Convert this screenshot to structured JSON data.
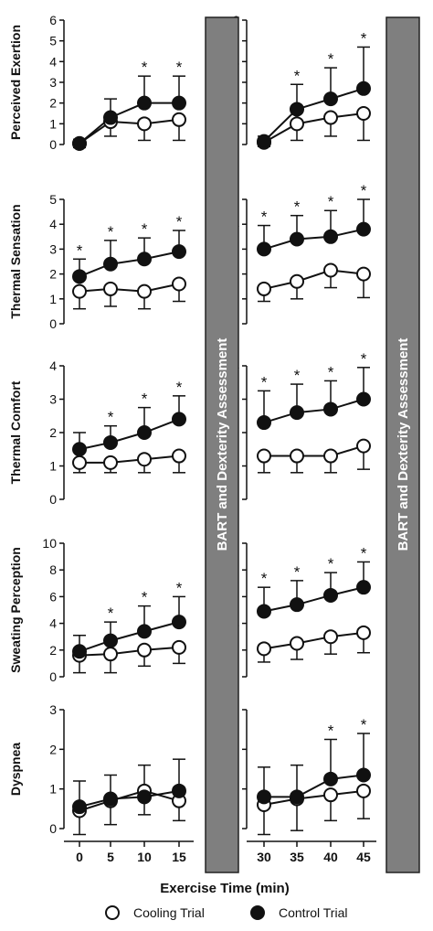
{
  "chart_data": {
    "type": "line",
    "xlabel": "Exercise Time (min)",
    "x_left": [
      0,
      5,
      10,
      15
    ],
    "x_right": [
      30,
      35,
      40,
      45
    ],
    "bart_label": "BART and Dexterity Assessment",
    "legend": {
      "cooling": "Cooling Trial",
      "control": "Control Trial"
    },
    "colors": {
      "cooling_fill": "#ffffff",
      "control_fill": "#111111",
      "bar": "#7f7f7f"
    },
    "significance_marker": "*",
    "panels": [
      {
        "ylabel": "Perceived Exertion",
        "ylim": [
          0,
          6
        ],
        "yticks": [
          "0",
          "1",
          "2",
          "3",
          "4",
          "5",
          "6"
        ],
        "cooling": {
          "mean": [
            0.05,
            1.1,
            1.0,
            1.2,
            0.1,
            1.0,
            1.3,
            1.5
          ],
          "sd": [
            0.2,
            0.7,
            0.8,
            1.0,
            0.2,
            0.8,
            0.9,
            1.3
          ]
        },
        "control": {
          "mean": [
            0.05,
            1.3,
            2.0,
            2.0,
            0.15,
            1.7,
            2.2,
            2.7
          ],
          "sd": [
            0.2,
            0.9,
            1.3,
            1.3,
            0.25,
            1.2,
            1.5,
            2.0
          ]
        },
        "sig": [
          false,
          false,
          true,
          true,
          false,
          true,
          true,
          true
        ]
      },
      {
        "ylabel": "Thermal Sensation",
        "ylim": [
          0,
          5
        ],
        "yticks": [
          "0",
          "1",
          "2",
          "3",
          "4",
          "5"
        ],
        "cooling": {
          "mean": [
            1.3,
            1.4,
            1.3,
            1.6,
            1.4,
            1.7,
            2.15,
            2.0
          ],
          "sd": [
            0.7,
            0.7,
            0.7,
            0.7,
            0.5,
            0.7,
            0.7,
            0.95
          ]
        },
        "control": {
          "mean": [
            1.9,
            2.4,
            2.6,
            2.9,
            3.0,
            3.4,
            3.5,
            3.8
          ],
          "sd": [
            0.7,
            0.95,
            0.85,
            0.85,
            0.95,
            0.95,
            1.05,
            1.25
          ]
        },
        "sig": [
          true,
          true,
          true,
          true,
          true,
          true,
          true,
          true
        ]
      },
      {
        "ylabel": "Thermal Comfort",
        "ylim": [
          0,
          4
        ],
        "yticks": [
          "0",
          "1",
          "2",
          "3",
          "4"
        ],
        "cooling": {
          "mean": [
            1.1,
            1.1,
            1.2,
            1.3,
            1.3,
            1.3,
            1.3,
            1.6
          ],
          "sd": [
            0.3,
            0.3,
            0.4,
            0.5,
            0.5,
            0.5,
            0.5,
            0.7
          ]
        },
        "control": {
          "mean": [
            1.5,
            1.7,
            2.0,
            2.4,
            2.3,
            2.6,
            2.7,
            3.0
          ],
          "sd": [
            0.5,
            0.5,
            0.75,
            0.7,
            0.95,
            0.85,
            0.85,
            0.95
          ]
        },
        "sig": [
          false,
          true,
          true,
          true,
          true,
          true,
          true,
          true
        ]
      },
      {
        "ylabel": "Sweating Perception",
        "ylim": [
          0,
          10
        ],
        "yticks": [
          "0",
          "2",
          "4",
          "6",
          "8",
          "10"
        ],
        "cooling": {
          "mean": [
            1.6,
            1.7,
            2.0,
            2.2,
            2.1,
            2.5,
            3.0,
            3.3
          ],
          "sd": [
            1.3,
            1.4,
            1.2,
            1.2,
            1.0,
            1.2,
            1.3,
            1.5
          ]
        },
        "control": {
          "mean": [
            1.9,
            2.7,
            3.4,
            4.1,
            4.9,
            5.4,
            6.1,
            6.7
          ],
          "sd": [
            1.2,
            1.4,
            1.9,
            1.9,
            1.8,
            1.8,
            1.7,
            1.9
          ]
        },
        "sig": [
          false,
          true,
          true,
          true,
          true,
          true,
          true,
          true
        ]
      },
      {
        "ylabel": "Dyspnea",
        "ylim": [
          0,
          3
        ],
        "yticks": [
          "0",
          "1",
          "2",
          "3"
        ],
        "cooling": {
          "mean": [
            0.45,
            0.7,
            0.95,
            0.7,
            0.6,
            0.75,
            0.85,
            0.95
          ],
          "sd": [
            0.7,
            0.6,
            0.6,
            0.5,
            0.85,
            0.8,
            0.65,
            0.7
          ]
        },
        "control": {
          "mean": [
            0.55,
            0.75,
            0.8,
            0.95,
            0.8,
            0.8,
            1.25,
            1.35
          ],
          "sd": [
            0.65,
            0.6,
            0.8,
            0.8,
            0.75,
            0.8,
            1.0,
            1.05
          ]
        },
        "sig": [
          false,
          false,
          false,
          false,
          false,
          false,
          true,
          true
        ]
      }
    ]
  }
}
